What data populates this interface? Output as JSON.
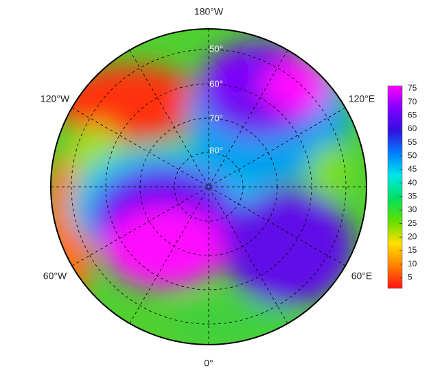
{
  "map": {
    "lon_labels": [
      "180°W",
      "120°W",
      "120°E",
      "60°W",
      "60°E",
      "0°"
    ],
    "lat_labels": [
      "50°",
      "60°",
      "70°",
      "80°"
    ]
  },
  "colorbar": {
    "lim": [
      1,
      76
    ],
    "ticks": [
      5,
      10,
      15,
      20,
      25,
      30,
      35,
      40,
      45,
      50,
      55,
      60,
      65,
      70,
      75
    ],
    "colors": [
      "#ff1010",
      "#ff8000",
      "#ffe000",
      "#60e000",
      "#00e060",
      "#00e8e8",
      "#0080ff",
      "#3010e0",
      "#8000ff",
      "#ff00ff"
    ]
  }
}
